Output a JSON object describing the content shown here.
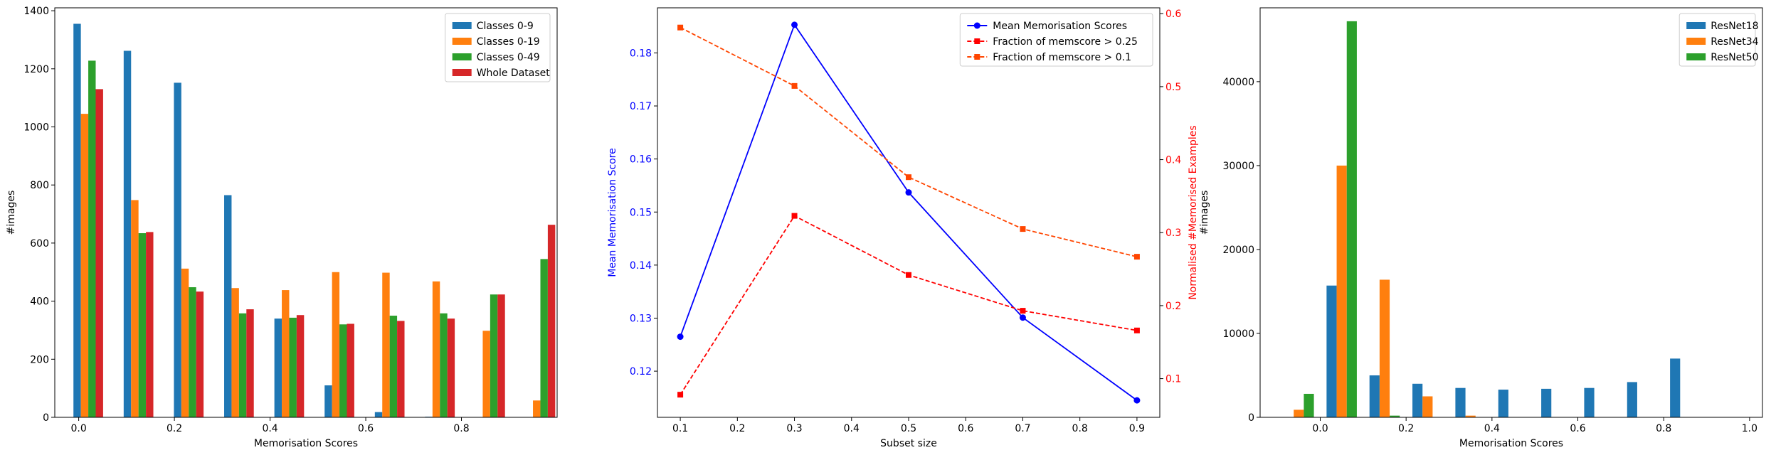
{
  "chart_data": [
    {
      "type": "bar",
      "xlabel": "Memorisation Scores",
      "ylabel": "#images",
      "xlim": [
        -0.05,
        1.0
      ],
      "ylim": [
        0,
        1410
      ],
      "xticks": [
        0.0,
        0.2,
        0.4,
        0.6,
        0.8
      ],
      "xtick_labels": [
        "0.0",
        "0.2",
        "0.4",
        "0.6",
        "0.8"
      ],
      "yticks": [
        0,
        200,
        400,
        600,
        800,
        1000,
        1200,
        1400
      ],
      "ytick_labels": [
        "0",
        "200",
        "400",
        "600",
        "800",
        "1000",
        "1200",
        "1400"
      ],
      "bin_centers": [
        0.02,
        0.125,
        0.23,
        0.335,
        0.44,
        0.545,
        0.65,
        0.755,
        0.86,
        0.965
      ],
      "bar_width": 0.0155,
      "legend_position": "top-right",
      "series": [
        {
          "name": "Classes 0-9",
          "color": "#1f77b4",
          "values": [
            1355,
            1262,
            1152,
            765,
            340,
            110,
            18,
            2,
            0,
            0
          ]
        },
        {
          "name": "Classes 0-19",
          "color": "#ff7f0e",
          "values": [
            1045,
            748,
            512,
            445,
            438,
            500,
            498,
            468,
            298,
            58
          ]
        },
        {
          "name": "Classes 0-49",
          "color": "#2ca02c",
          "values": [
            1228,
            634,
            448,
            358,
            343,
            320,
            350,
            358,
            423,
            545
          ]
        },
        {
          "name": "Whole Dataset",
          "color": "#d62728",
          "values": [
            1130,
            638,
            433,
            372,
            352,
            322,
            332,
            340,
            423,
            663
          ]
        }
      ]
    },
    {
      "type": "line",
      "xlabel": "Subset size",
      "ylabel": "Mean Memorisation Score",
      "ylabel2": "Normalised #Memorised Examples",
      "xlim": [
        0.06,
        0.94
      ],
      "ylim": [
        0.1113,
        0.1885
      ],
      "ylim2": [
        0.047,
        0.608
      ],
      "xticks": [
        0.1,
        0.2,
        0.3,
        0.4,
        0.5,
        0.6,
        0.7,
        0.8,
        0.9
      ],
      "xtick_labels": [
        "0.1",
        "0.2",
        "0.3",
        "0.4",
        "0.5",
        "0.6",
        "0.7",
        "0.8",
        "0.9"
      ],
      "yticks": [
        0.12,
        0.13,
        0.14,
        0.15,
        0.16,
        0.17,
        0.18
      ],
      "ytick_labels": [
        "0.12",
        "0.13",
        "0.14",
        "0.15",
        "0.16",
        "0.17",
        "0.18"
      ],
      "yticks2": [
        0.1,
        0.2,
        0.3,
        0.4,
        0.5,
        0.6
      ],
      "ytick_labels2": [
        "0.1",
        "0.2",
        "0.3",
        "0.4",
        "0.5",
        "0.6"
      ],
      "left_axis_color": "#0000ff",
      "right_axis_color": "#ff0000",
      "legend_position": "top-right",
      "x": [
        0.1,
        0.3,
        0.5,
        0.7,
        0.9
      ],
      "series": [
        {
          "name": "Mean Memorisation Scores",
          "axis": "left",
          "color": "#0000ff",
          "style": "solid",
          "marker": "circle",
          "values": [
            0.1265,
            0.1853,
            0.1537,
            0.1301,
            0.1145
          ]
        },
        {
          "name": "Fraction of memscore > 0.25",
          "axis": "right",
          "color": "#ff0000",
          "style": "dashed",
          "marker": "square",
          "values": [
            0.078,
            0.323,
            0.242,
            0.193,
            0.166
          ]
        },
        {
          "name": "Fraction of memscore > 0.1",
          "axis": "right",
          "color": "#ff4500",
          "style": "dashed",
          "marker": "square",
          "values": [
            0.581,
            0.501,
            0.376,
            0.305,
            0.267
          ]
        }
      ]
    },
    {
      "type": "bar",
      "xlabel": "Memorisation Scores",
      "ylabel": "#images",
      "xlim": [
        -0.14,
        1.03
      ],
      "ylim": [
        0,
        48800
      ],
      "xticks": [
        0.0,
        0.2,
        0.4,
        0.6,
        0.8,
        1.0
      ],
      "xtick_labels": [
        "0.0",
        "0.2",
        "0.4",
        "0.6",
        "0.8",
        "1.0"
      ],
      "yticks": [
        0,
        10000,
        20000,
        30000,
        40000
      ],
      "ytick_labels": [
        "0",
        "10000",
        "20000",
        "30000",
        "40000"
      ],
      "bin_centers": [
        -0.05,
        0.05,
        0.15,
        0.25,
        0.35,
        0.45,
        0.55,
        0.65,
        0.75,
        0.85,
        0.95
      ],
      "bar_width": 0.0235,
      "legend_position": "top-right",
      "series": [
        {
          "name": "ResNet18",
          "color": "#1f77b4",
          "values": [
            0,
            15700,
            5000,
            4000,
            3500,
            3300,
            3400,
            3500,
            4200,
            7000,
            0
          ]
        },
        {
          "name": "ResNet34",
          "color": "#ff7f0e",
          "values": [
            900,
            30000,
            16400,
            2500,
            200,
            0,
            0,
            0,
            0,
            0,
            0
          ]
        },
        {
          "name": "ResNet50",
          "color": "#2ca02c",
          "values": [
            2800,
            47200,
            200,
            0,
            0,
            0,
            0,
            0,
            0,
            0,
            0
          ]
        }
      ]
    }
  ]
}
